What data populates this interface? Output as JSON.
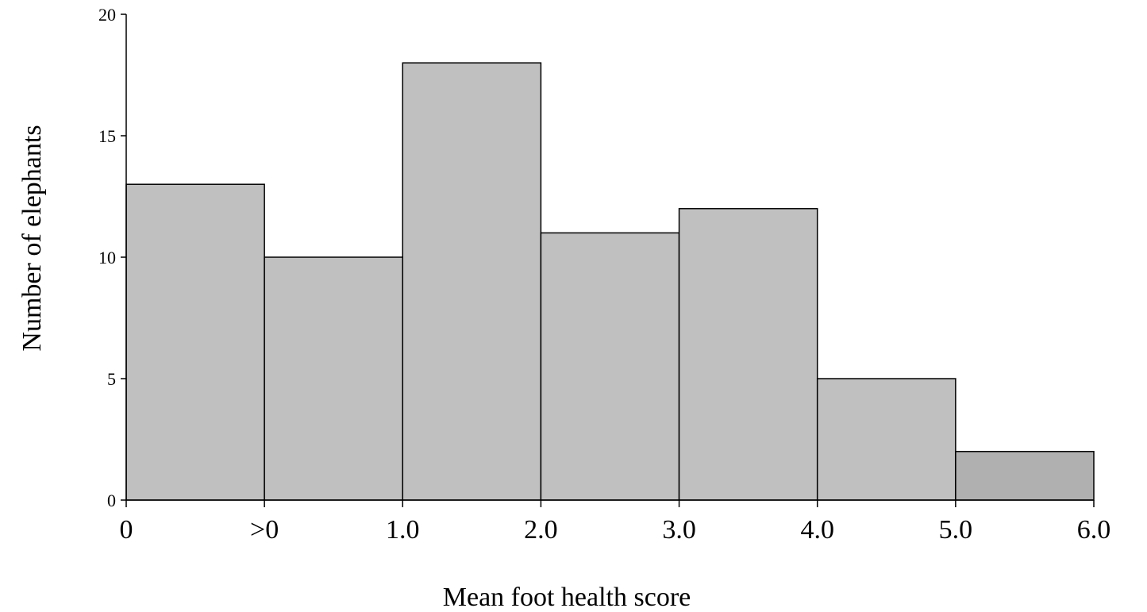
{
  "chart_data": {
    "type": "bar",
    "title": "",
    "xlabel": "Mean foot health score",
    "ylabel": "Number of elephants",
    "ylim": [
      0,
      20
    ],
    "yticks": [
      "0",
      "5",
      "10",
      "15",
      "20"
    ],
    "xtick_labels": [
      "0",
      ">0",
      "1.0",
      "2.0",
      "3.0",
      "4.0",
      "5.0",
      "6.0"
    ],
    "bins": [
      "0",
      ">0-1.0",
      "1.0-2.0",
      "2.0-3.0",
      "3.0-4.0",
      "4.0-5.0",
      "5.0-6.0"
    ],
    "values": [
      13,
      10,
      18,
      11,
      12,
      5,
      2
    ],
    "grid": false,
    "legend": "none",
    "bar_color": "#c0c0c0",
    "last_bar_color": "#b0b0b0",
    "edge_color": "#000000"
  }
}
